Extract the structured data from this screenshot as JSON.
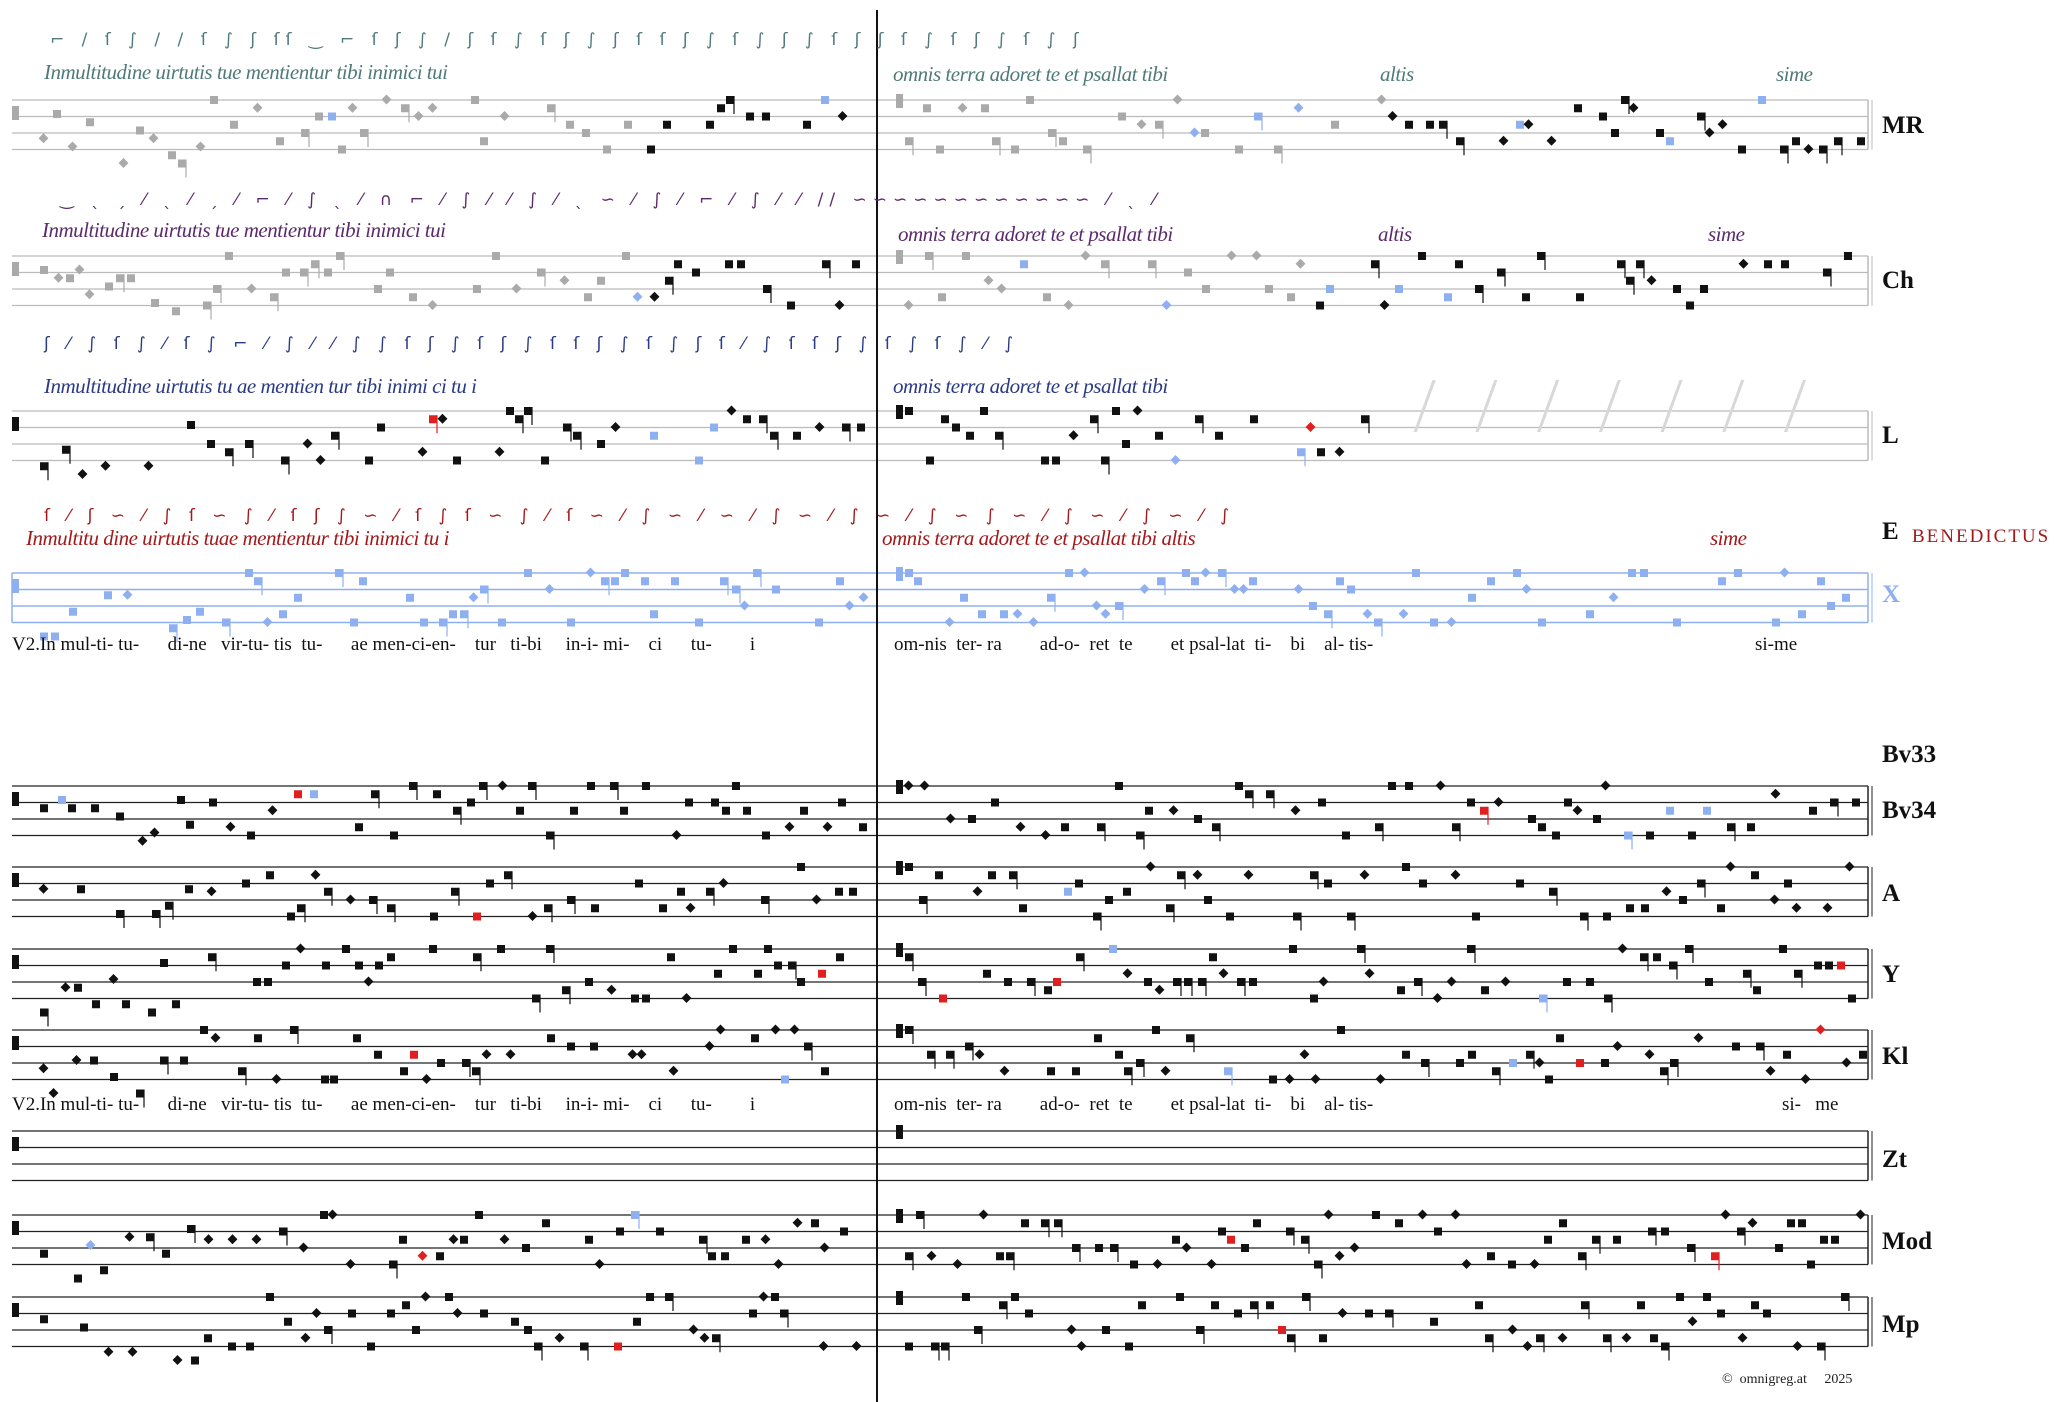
{
  "staff_labels": {
    "MR": "MR",
    "Ch": "Ch",
    "L": "L",
    "E": "E",
    "X": "X",
    "Bv33": "Bv33",
    "Bv34": "Bv34",
    "A": "A",
    "Y": "Y",
    "Kl": "Kl",
    "Zt": "Zt",
    "Mod": "Mod",
    "Mp": "Mp"
  },
  "lyrics": {
    "upper_left": "V2.In mul-ti- tu-      di-ne   vir-tu- tis  tu-      ae men-ci-en-    tur   ti-bi     in-i- mi-    ci      tu-        i",
    "upper_right": "om-nis  ter- ra        ad-o-  ret  te        et psal-lat  ti-    bi    al- tis-",
    "upper_end": "si-me",
    "lower_left": "V2.In mul-ti- tu-      di-ne   vir-tu- tis  tu-      ae men-ci-en-    tur   ti-bi     in-i- mi-    ci      tu-        i",
    "lower_right": "om-nis  ter- ra        ad-o-  ret  te        et psal-lat  ti-    bi    al- tis-",
    "lower_end": "si-   me"
  },
  "manuscripts": {
    "MR": {
      "left": "Inmultitudine uirtutis      tue mentientur tibi inimici tui",
      "right": "omnis terra adoret te et psallat tibi",
      "altis": "altis",
      "sime": "sime",
      "color": "#4f7a78"
    },
    "Ch": {
      "left": "Inmultitudine uirtutis tue        mentientur tibi inimici tui",
      "right": "omnis terra adoret te et psallat tibi",
      "altis": "altis",
      "sime": "sime",
      "color": "#5b2a6b"
    },
    "L": {
      "left": "Inmultitudine  uirtutis tu   ae      mentien tur tibi  inimi ci tu  i",
      "right": "omnis terra   adoret te  et psallat tibi",
      "color": "#2b3a84"
    },
    "E": {
      "left": "Inmultitu    dine  uirtutis tuae mentientur tibi       inimici   tu   i",
      "right": "omnis terra      adoret te      et psallat tibi altis",
      "sime": "sime",
      "next": "BENEDICTUS",
      "color": "#a3191b"
    }
  },
  "colors": {
    "black": "#111111",
    "gray": "#aaaaaa",
    "blue": "#8fb0f0",
    "red": "#e02020",
    "green": "#7a9a7a"
  },
  "footer": {
    "copyright": "©  omnigreg.at     2025"
  }
}
